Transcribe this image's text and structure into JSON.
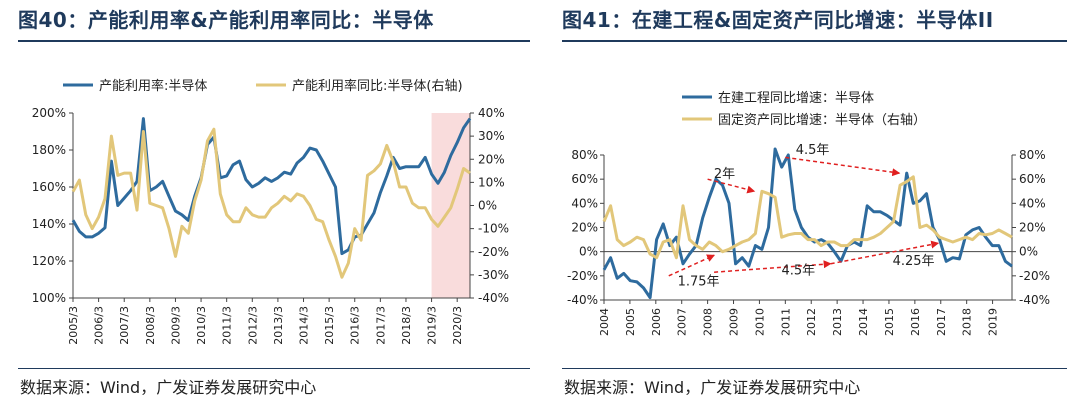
{
  "charts": [
    {
      "title": "图40：产能利用率&产能利用率同比：半导体",
      "source": "数据来源：Wind，广发证券发展研究中心"
    },
    {
      "title": "图41：在建工程&固定资产同比增速：半导体II",
      "source": "数据来源：Wind，广发证券发展研究中心"
    }
  ],
  "chart_data": [
    {
      "type": "line",
      "title": "图40：产能利用率&产能利用率同比：半导体",
      "x_ticks": [
        "2005/3",
        "2006/3",
        "2007/3",
        "2008/3",
        "2009/3",
        "2010/3",
        "2011/3",
        "2012/3",
        "2013/3",
        "2014/3",
        "2015/3",
        "2016/3",
        "2017/3",
        "2018/3",
        "2019/3",
        "2020/3"
      ],
      "x_start": "2005/3",
      "x_end": "2020/12",
      "y_left": {
        "min": 100,
        "max": 200,
        "step": 20,
        "format": "percent",
        "ticks": [
          "100%",
          "120%",
          "140%",
          "160%",
          "180%",
          "200%"
        ]
      },
      "y_right": {
        "min": -40,
        "max": 40,
        "step": 10,
        "format": "percent",
        "ticks": [
          "-40%",
          "-30%",
          "-20%",
          "-10%",
          "0%",
          "10%",
          "20%",
          "30%",
          "40%"
        ]
      },
      "legend_position": "top",
      "shaded_region": {
        "from": "2019/3",
        "to": "2020/12",
        "color": "#f9dcdc"
      },
      "series": [
        {
          "name": "产能利用率:半导体",
          "axis": "left",
          "color": "#2e6b9e",
          "values": [
            142,
            136,
            133,
            133,
            135,
            138,
            174,
            150,
            154,
            158,
            163,
            197,
            158,
            160,
            163,
            155,
            147,
            145,
            142,
            155,
            165,
            183,
            187,
            165,
            166,
            172,
            174,
            164,
            160,
            162,
            165,
            163,
            165,
            168,
            167,
            173,
            176,
            181,
            180,
            174,
            167,
            160,
            124,
            126,
            133,
            134,
            140,
            146,
            157,
            166,
            176,
            170,
            171,
            171,
            171,
            176,
            167,
            162,
            168,
            177,
            184,
            192,
            197
          ]
        },
        {
          "name": "产能利用率同比:半导体(右轴)",
          "axis": "right",
          "color": "#e2c77a",
          "values": [
            6,
            11,
            -4,
            -10,
            -5,
            3,
            30,
            13,
            14,
            14,
            -2,
            32,
            1,
            0,
            -1,
            -10,
            -22,
            -9,
            -12,
            2,
            11,
            28,
            33,
            5,
            -4,
            -7,
            -7,
            -1,
            -4,
            -5,
            -5,
            -1,
            1,
            4,
            2,
            5,
            4,
            0,
            -6,
            -7,
            -15,
            -22,
            -31,
            -25,
            -10,
            -15,
            13,
            15,
            18,
            26,
            19,
            8,
            8,
            1,
            -1,
            -1,
            -6,
            -9,
            -5,
            -1,
            7,
            16,
            14
          ]
        }
      ]
    },
    {
      "type": "line",
      "title": "图41：在建工程&固定资产同比增速：半导体II",
      "x_ticks": [
        "2004",
        "2005",
        "2006",
        "2007",
        "2008",
        "2009",
        "2010",
        "2011",
        "2012",
        "2013",
        "2014",
        "2015",
        "2016",
        "2017",
        "2018",
        "2019"
      ],
      "x_start": 2004.0,
      "x_end": 2019.75,
      "y_left": {
        "min": -40,
        "max": 80,
        "step": 20,
        "format": "percent",
        "ticks": [
          "-40%",
          "-20%",
          "0%",
          "20%",
          "40%",
          "60%",
          "80%"
        ]
      },
      "y_right": {
        "min": -40,
        "max": 80,
        "step": 20,
        "format": "percent",
        "ticks": [
          "-40%",
          "-20%",
          "0%",
          "20%",
          "40%",
          "60%",
          "80%"
        ]
      },
      "legend_position": "top-left",
      "series": [
        {
          "name": "在建工程同比增速：半导体",
          "axis": "left",
          "color": "#2e6b9e",
          "values": [
            -15,
            -5,
            -22,
            -18,
            -24,
            -25,
            -30,
            -38,
            10,
            23,
            5,
            12,
            -10,
            -2,
            5,
            28,
            45,
            60,
            55,
            40,
            -10,
            -5,
            -12,
            5,
            2,
            20,
            85,
            70,
            80,
            35,
            20,
            12,
            8,
            10,
            7,
            0,
            -8,
            5,
            8,
            5,
            38,
            33,
            33,
            30,
            26,
            22,
            65,
            40,
            42,
            48,
            20,
            10,
            -8,
            -5,
            -6,
            14,
            18,
            20,
            12,
            5,
            5,
            -8,
            -12
          ]
        },
        {
          "name": "固定资产同比增速：半导体（右轴）",
          "axis": "right",
          "color": "#e2c77a",
          "values": [
            25,
            38,
            10,
            5,
            8,
            12,
            10,
            -2,
            -5,
            8,
            10,
            -5,
            38,
            10,
            5,
            2,
            8,
            5,
            0,
            2,
            5,
            8,
            10,
            15,
            50,
            48,
            45,
            12,
            14,
            15,
            15,
            10,
            10,
            5,
            8,
            8,
            5,
            5,
            10,
            10,
            10,
            12,
            15,
            20,
            25,
            55,
            58,
            62,
            20,
            22,
            18,
            12,
            10,
            8,
            10,
            12,
            10,
            15,
            14,
            15,
            18,
            15,
            12
          ]
        }
      ],
      "annotations": [
        {
          "text": "2年",
          "x": 2008.65,
          "y": 61
        },
        {
          "text": "4.5年",
          "x": 2012.05,
          "y": 81
        },
        {
          "text": "1.75年",
          "x": 2007.65,
          "y": -28
        },
        {
          "text": "4.5年",
          "x": 2011.5,
          "y": -19
        },
        {
          "text": "4.25年",
          "x": 2015.95,
          "y": -11
        }
      ],
      "arrows": [
        {
          "from": [
            2008.0,
            60
          ],
          "to": [
            2009.8,
            50
          ]
        },
        {
          "from": [
            2011.0,
            78
          ],
          "to": [
            2015.4,
            65
          ]
        },
        {
          "from": [
            2006.5,
            -20
          ],
          "to": [
            2008.25,
            -3
          ]
        },
        {
          "from": [
            2008.25,
            -17
          ],
          "to": [
            2012.75,
            -10
          ]
        },
        {
          "from": [
            2012.75,
            -10
          ],
          "to": [
            2016.9,
            7
          ]
        }
      ]
    }
  ]
}
